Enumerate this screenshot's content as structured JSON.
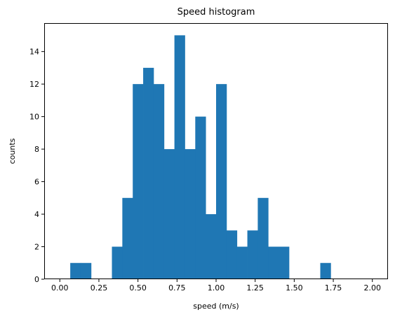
{
  "chart_data": {
    "type": "bar",
    "title": "Speed histogram",
    "xlabel": "speed (m/s)",
    "ylabel": "counts",
    "xlim": [
      -0.1,
      2.1
    ],
    "ylim": [
      0,
      15.75
    ],
    "grid": false,
    "legend": "none",
    "color": "#1f77b4",
    "bin_range": [
      0.0,
      2.0
    ],
    "bin_width": 0.0667,
    "bin_edges": [
      0.0,
      0.0667,
      0.1333,
      0.2,
      0.2667,
      0.3333,
      0.4,
      0.4667,
      0.5333,
      0.6,
      0.6667,
      0.7333,
      0.8,
      0.8667,
      0.9333,
      1.0,
      1.0667,
      1.1333,
      1.2,
      1.2667,
      1.3333,
      1.4,
      1.4667,
      1.5333,
      1.6,
      1.6667,
      1.7333,
      1.8,
      1.8667,
      1.9333,
      2.0
    ],
    "counts": [
      0,
      1,
      1,
      0,
      0,
      2,
      5,
      12,
      13,
      12,
      8,
      15,
      8,
      10,
      4,
      12,
      3,
      2,
      3,
      5,
      2,
      2,
      0,
      0,
      0,
      1,
      0,
      0,
      0,
      0
    ],
    "x_ticks": [
      0.0,
      0.25,
      0.5,
      0.75,
      1.0,
      1.25,
      1.5,
      1.75,
      2.0
    ],
    "x_tick_labels": [
      "0.00",
      "0.25",
      "0.50",
      "0.75",
      "1.00",
      "1.25",
      "1.50",
      "1.75",
      "2.00"
    ],
    "y_ticks": [
      0,
      2,
      4,
      6,
      8,
      10,
      12,
      14
    ],
    "y_tick_labels": [
      "0",
      "2",
      "4",
      "6",
      "8",
      "10",
      "12",
      "14"
    ]
  }
}
